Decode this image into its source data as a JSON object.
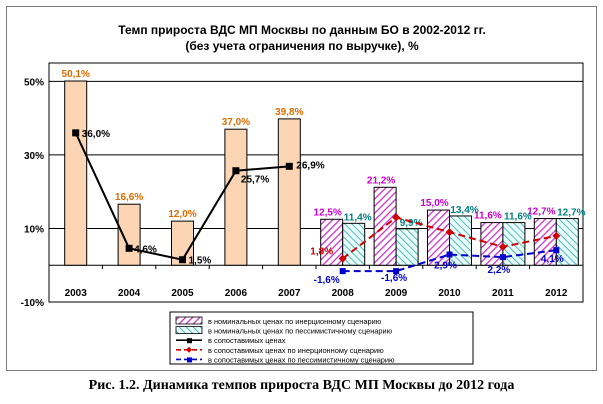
{
  "chart_data": {
    "type": "bar",
    "title": "Темп прироста ВДС МП Москвы по данным БО в 2002-2012 гг.",
    "subtitle": "(без учета ограничения по выручке), %",
    "categories": [
      "2003",
      "2004",
      "2005",
      "2006",
      "2007",
      "2008",
      "2009",
      "2010",
      "2011",
      "2012"
    ],
    "y_ticks": [
      "50%",
      "30%",
      "10%",
      "-10%"
    ],
    "ylim": [
      -10,
      55
    ],
    "grid": true,
    "legend_position": "bottom",
    "colors": {
      "actual_bars": "#fcd5b4",
      "inertia_pattern": "#cc33cc",
      "pessimistic_pattern": "#33aaaa",
      "actual_line": "#000000",
      "inertia_line": "#cc0000",
      "pessimistic_line": "#0000cc",
      "label_actual": "#e06c00",
      "label_inertia": "#cc00cc",
      "label_pessimistic": "#008080",
      "label_red": "#cc0000",
      "label_blue": "#0000cc",
      "grid": "#000000",
      "plot_bg": "#ffffff"
    },
    "series": [
      {
        "name": "",
        "kind": "bar",
        "values": [
          50.1,
          16.6,
          12.0,
          37.0,
          39.8,
          null,
          null,
          null,
          null,
          null
        ],
        "labels": [
          "50,1%",
          "16,6%",
          "12,0%",
          "37,0%",
          "39,8%",
          "",
          "",
          "",
          "",
          ""
        ]
      },
      {
        "name": "в номинальных ценах по инерционному сценарию",
        "kind": "bar",
        "values": [
          null,
          null,
          null,
          null,
          null,
          12.5,
          21.2,
          15.0,
          11.6,
          12.7
        ],
        "labels": [
          "",
          "",
          "",
          "",
          "",
          "12,5%",
          "21,2%",
          "15,0%",
          "11,6%",
          "12,7%"
        ]
      },
      {
        "name": "в номинальных ценах по пессимистичному сценарию",
        "kind": "bar",
        "values": [
          null,
          null,
          null,
          null,
          null,
          11.4,
          9.9,
          13.4,
          11.6,
          12.7
        ],
        "labels": [
          "",
          "",
          "",
          "",
          "",
          "11,4%",
          "9,9%",
          "13,4%",
          "11,6%",
          "12,7%"
        ]
      },
      {
        "name": "в сопоставимых ценах",
        "kind": "line",
        "values": [
          36.0,
          4.6,
          1.5,
          25.7,
          26.9,
          null,
          null,
          null,
          null,
          null
        ],
        "labels": [
          "36,0%",
          "4,6%",
          "1,5%",
          "25,7%",
          "26,9%",
          "",
          "",
          "",
          "",
          ""
        ]
      },
      {
        "name": "в сопоставимых ценах по инерционному сценарию",
        "kind": "line",
        "values": [
          null,
          null,
          null,
          null,
          null,
          1.8,
          13.0,
          9.0,
          5.0,
          8.0
        ],
        "labels": [
          "",
          "",
          "",
          "",
          "",
          "1,8%",
          "",
          "",
          "",
          ""
        ]
      },
      {
        "name": "в сопоставимых ценах по пессимистичному сценарию",
        "kind": "line",
        "values": [
          null,
          null,
          null,
          null,
          null,
          -1.6,
          -1.6,
          2.9,
          2.2,
          4.1
        ],
        "labels": [
          "",
          "",
          "",
          "",
          "",
          "-1,6%",
          "-1,6%",
          "2,9%",
          "2,2%",
          "4,1%"
        ]
      }
    ]
  },
  "caption": "Рис. 1.2. Динамика темпов прироста ВДС МП Москвы до 2012 года"
}
